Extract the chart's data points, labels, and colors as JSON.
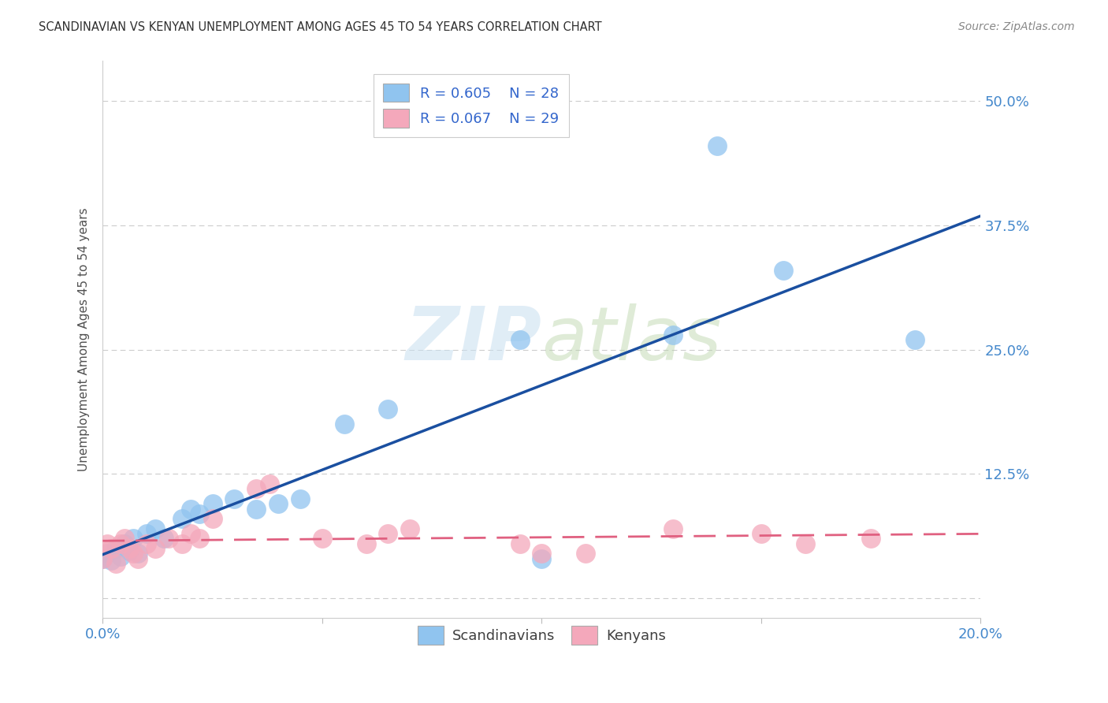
{
  "title": "SCANDINAVIAN VS KENYAN UNEMPLOYMENT AMONG AGES 45 TO 54 YEARS CORRELATION CHART",
  "source": "Source: ZipAtlas.com",
  "ylabel": "Unemployment Among Ages 45 to 54 years",
  "scand_color": "#90c4ef",
  "kenyan_color": "#f4a8bb",
  "scand_line_color": "#1a4fa0",
  "kenyan_line_color": "#e06080",
  "background_color": "#ffffff",
  "grid_color": "#cccccc",
  "title_color": "#303030",
  "axis_label_color": "#505050",
  "tick_color": "#4488cc",
  "watermark_color": "#ddeef8",
  "scand_R": 0.605,
  "scand_N": 28,
  "kenyan_R": 0.067,
  "kenyan_N": 29,
  "xlim": [
    0.0,
    0.2
  ],
  "ylim": [
    -0.02,
    0.54
  ],
  "scand_x": [
    0.0,
    0.001,
    0.002,
    0.003,
    0.004,
    0.005,
    0.006,
    0.007,
    0.008,
    0.01,
    0.012,
    0.014,
    0.018,
    0.02,
    0.022,
    0.025,
    0.03,
    0.035,
    0.04,
    0.045,
    0.055,
    0.065,
    0.095,
    0.1,
    0.13,
    0.14,
    0.155,
    0.185
  ],
  "scand_y": [
    0.04,
    0.045,
    0.038,
    0.05,
    0.042,
    0.055,
    0.048,
    0.06,
    0.045,
    0.065,
    0.07,
    0.06,
    0.08,
    0.09,
    0.085,
    0.095,
    0.1,
    0.09,
    0.095,
    0.1,
    0.175,
    0.19,
    0.26,
    0.04,
    0.265,
    0.455,
    0.33,
    0.26
  ],
  "kenyan_x": [
    0.0,
    0.001,
    0.002,
    0.003,
    0.004,
    0.005,
    0.006,
    0.007,
    0.008,
    0.01,
    0.012,
    0.015,
    0.018,
    0.02,
    0.022,
    0.025,
    0.035,
    0.038,
    0.05,
    0.06,
    0.065,
    0.07,
    0.095,
    0.1,
    0.11,
    0.13,
    0.15,
    0.16,
    0.175
  ],
  "kenyan_y": [
    0.04,
    0.055,
    0.05,
    0.035,
    0.055,
    0.06,
    0.05,
    0.045,
    0.04,
    0.055,
    0.05,
    0.06,
    0.055,
    0.065,
    0.06,
    0.08,
    0.11,
    0.115,
    0.06,
    0.055,
    0.065,
    0.07,
    0.055,
    0.045,
    0.045,
    0.07,
    0.065,
    0.055,
    0.06
  ]
}
